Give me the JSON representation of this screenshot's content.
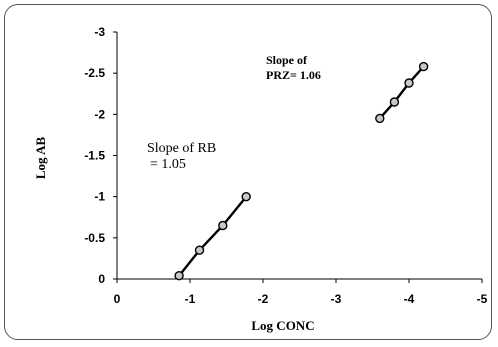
{
  "chart_data": {
    "type": "line",
    "xlabel": "Log CONC",
    "ylabel": "Log AB",
    "x_axis_reversed": true,
    "y_axis_reversed": true,
    "xlim": [
      0,
      -5
    ],
    "ylim": [
      0,
      -3
    ],
    "x_ticks": [
      {
        "value": 0,
        "label": "0"
      },
      {
        "value": -1,
        "label": "-1"
      },
      {
        "value": -2,
        "label": "-2"
      },
      {
        "value": -3,
        "label": "-3"
      },
      {
        "value": -4,
        "label": "-4"
      },
      {
        "value": -5,
        "label": "-5"
      }
    ],
    "y_ticks": [
      {
        "value": 0,
        "label": "0"
      },
      {
        "value": -0.5,
        "label": "-0.5"
      },
      {
        "value": -1,
        "label": "-1"
      },
      {
        "value": -1.5,
        "label": "-1.5"
      },
      {
        "value": -2,
        "label": "-2"
      },
      {
        "value": -2.5,
        "label": "-2.5"
      },
      {
        "value": -3,
        "label": "-3"
      }
    ],
    "grid": false,
    "legend": "none",
    "series": [
      {
        "x": [
          -0.85,
          -1.13,
          -1.45,
          -1.77
        ],
        "y": [
          -0.04,
          -0.35,
          -0.65,
          -1.0
        ]
      },
      {
        "x": [
          -3.6,
          -3.8,
          -4.0,
          -4.2
        ],
        "y": [
          -1.95,
          -2.15,
          -2.38,
          -2.58
        ]
      }
    ],
    "annotations": [
      {
        "lines": [
          "Slope of RB",
          "= 1.05"
        ]
      },
      {
        "lines": [
          "Slope of",
          "PRZ= 1.06"
        ]
      }
    ]
  }
}
